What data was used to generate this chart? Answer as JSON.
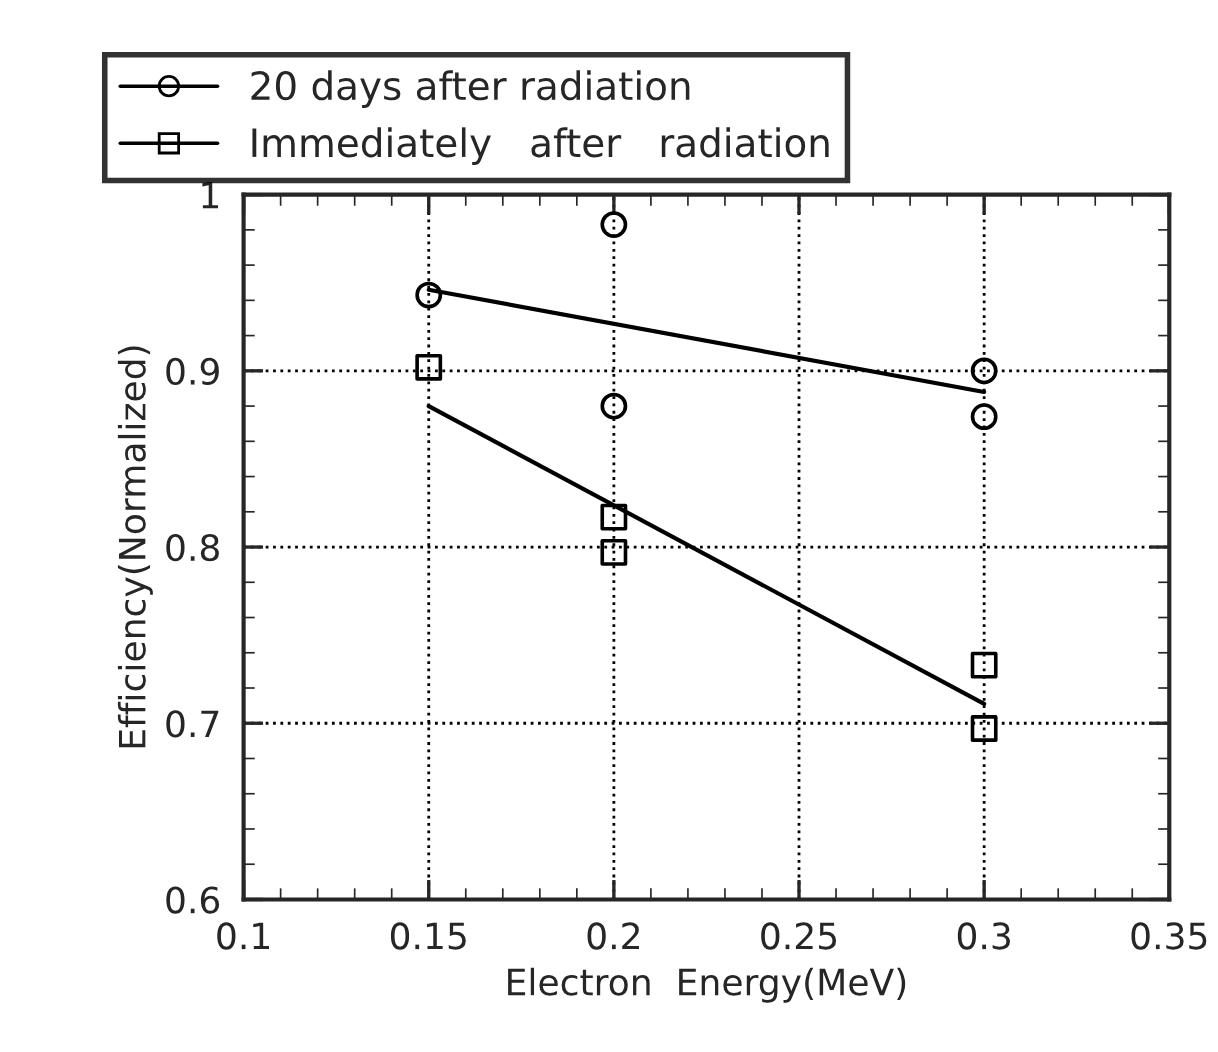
{
  "chart_data": {
    "type": "scatter",
    "xlabel": "Electron  Energy(MeV)",
    "ylabel": "Efficiency(Normalized)",
    "series": [
      {
        "name": "20 days after radiation",
        "color": "#000000",
        "marker": "circle",
        "x": [
          0.15,
          0.2,
          0.2,
          0.3,
          0.3
        ],
        "values": [
          0.943,
          0.983,
          0.88,
          0.9,
          0.874
        ]
      },
      {
        "name": "Immediately   after   radiation",
        "color": "#000000",
        "marker": "square",
        "x": [
          0.15,
          0.2,
          0.2,
          0.3,
          0.3
        ],
        "values": [
          0.902,
          0.817,
          0.797,
          0.733,
          0.697
        ]
      },
      {
        "type": "line",
        "color": "#000000",
        "x": [
          0.15,
          0.3
        ],
        "values": [
          0.946,
          0.888
        ]
      },
      {
        "type": "line",
        "color": "#000000",
        "x": [
          0.15,
          0.3
        ],
        "values": [
          0.88,
          0.711
        ]
      }
    ],
    "xlim": [
      0.1,
      0.35
    ],
    "xticks": [
      0.1,
      0.15,
      0.2,
      0.25,
      0.3,
      0.35
    ],
    "ylim": [
      0.6,
      1.0
    ],
    "yticks": [
      0.6,
      0.7,
      0.8,
      0.9,
      {
        "value": 1.0,
        "label": "1"
      }
    ],
    "grid": true,
    "legend": "top"
  }
}
